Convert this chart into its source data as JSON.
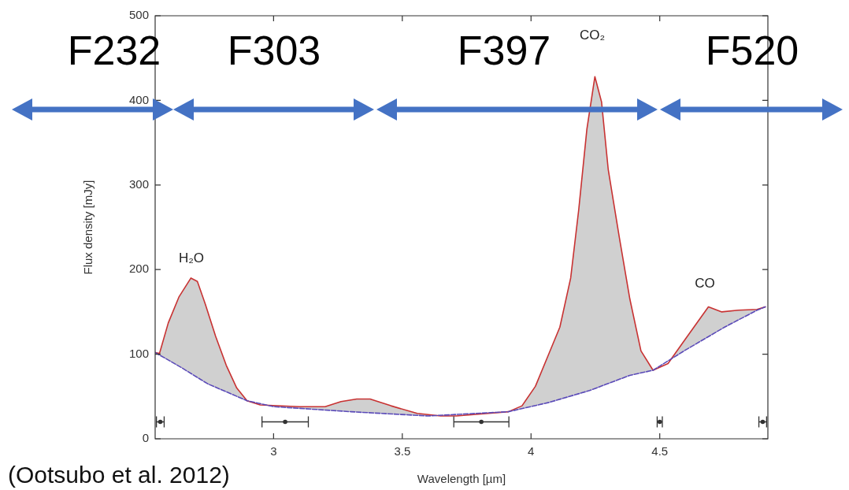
{
  "chart_data": {
    "type": "line",
    "xlabel": "Wavelength [µm]",
    "ylabel": "Flux density [mJy]",
    "xlim": [
      2.54,
      4.92
    ],
    "ylim": [
      0,
      500
    ],
    "xticks": [
      3,
      3.5,
      4,
      4.5
    ],
    "yticks": [
      0,
      100,
      200,
      300,
      400,
      500
    ],
    "grid": false,
    "legend": false,
    "marker": "none",
    "series": [
      {
        "color": "#c83232",
        "x": [
          2.54,
          2.557,
          2.591,
          2.633,
          2.679,
          2.704,
          2.735,
          2.775,
          2.816,
          2.857,
          2.897,
          2.948,
          3.1,
          3.2,
          3.262,
          3.323,
          3.375,
          3.456,
          3.558,
          3.649,
          3.71,
          3.912,
          3.965,
          4.017,
          4.07,
          4.112,
          4.154,
          4.185,
          4.217,
          4.248,
          4.274,
          4.3,
          4.343,
          4.384,
          4.427,
          4.474,
          4.532,
          4.595,
          4.689,
          4.741,
          4.805,
          4.878,
          4.91
        ],
        "values": [
          102,
          101,
          137,
          168,
          190,
          186,
          159,
          121,
          87,
          60,
          45,
          40,
          38,
          38,
          44,
          47,
          47,
          39,
          30,
          27,
          27,
          32,
          39,
          62,
          101,
          132,
          190,
          270,
          366,
          428,
          398,
          318,
          238,
          165,
          104,
          81,
          89,
          116,
          156,
          150,
          152,
          153,
          156
        ]
      },
      {
        "color": "#5a4ab8",
        "line_style": "dashed",
        "x": [
          2.54,
          2.643,
          2.744,
          2.897,
          3.0,
          3.3,
          3.6,
          3.912,
          4.07,
          4.227,
          4.384,
          4.474,
          4.595,
          4.752,
          4.878,
          4.91
        ],
        "values": [
          102,
          84,
          65,
          45,
          38,
          32,
          27,
          32,
          43,
          57,
          75,
          81,
          104,
          132,
          152,
          156
        ]
      },
      {
        "type": "scatter",
        "color": "#333333",
        "marker": "circle",
        "x": [
          2.56,
          3.045,
          3.807,
          4.5,
          4.9
        ],
        "values": [
          20,
          20,
          20,
          20,
          20
        ],
        "xerrors": [
          0.015,
          0.09,
          0.107,
          0.01,
          0.015
        ]
      }
    ],
    "annotations": [
      "F232",
      "F303",
      "F397",
      "F520",
      "H₂O",
      "CO₂",
      "CO",
      "(Ootsubo et al. 2012)"
    ]
  }
}
